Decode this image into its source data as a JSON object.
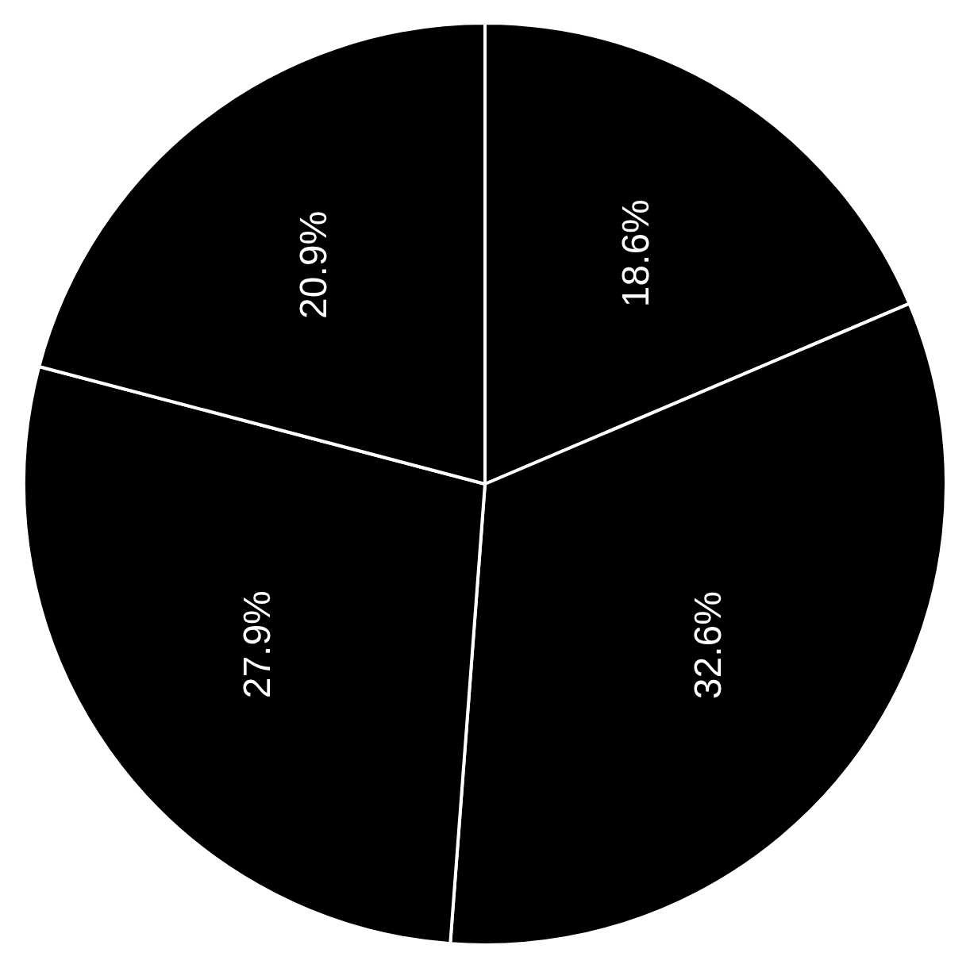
{
  "chart_data": {
    "type": "pie",
    "categories": [
      null,
      null,
      null,
      null
    ],
    "values": [
      18.6,
      32.6,
      27.9,
      20.9
    ],
    "colors": [
      "#000000",
      "#000000",
      "#000000",
      "#000000"
    ],
    "value_labels": [
      "18.6%",
      "32.6%",
      "27.9%",
      "20.9%"
    ],
    "legend": false
  }
}
